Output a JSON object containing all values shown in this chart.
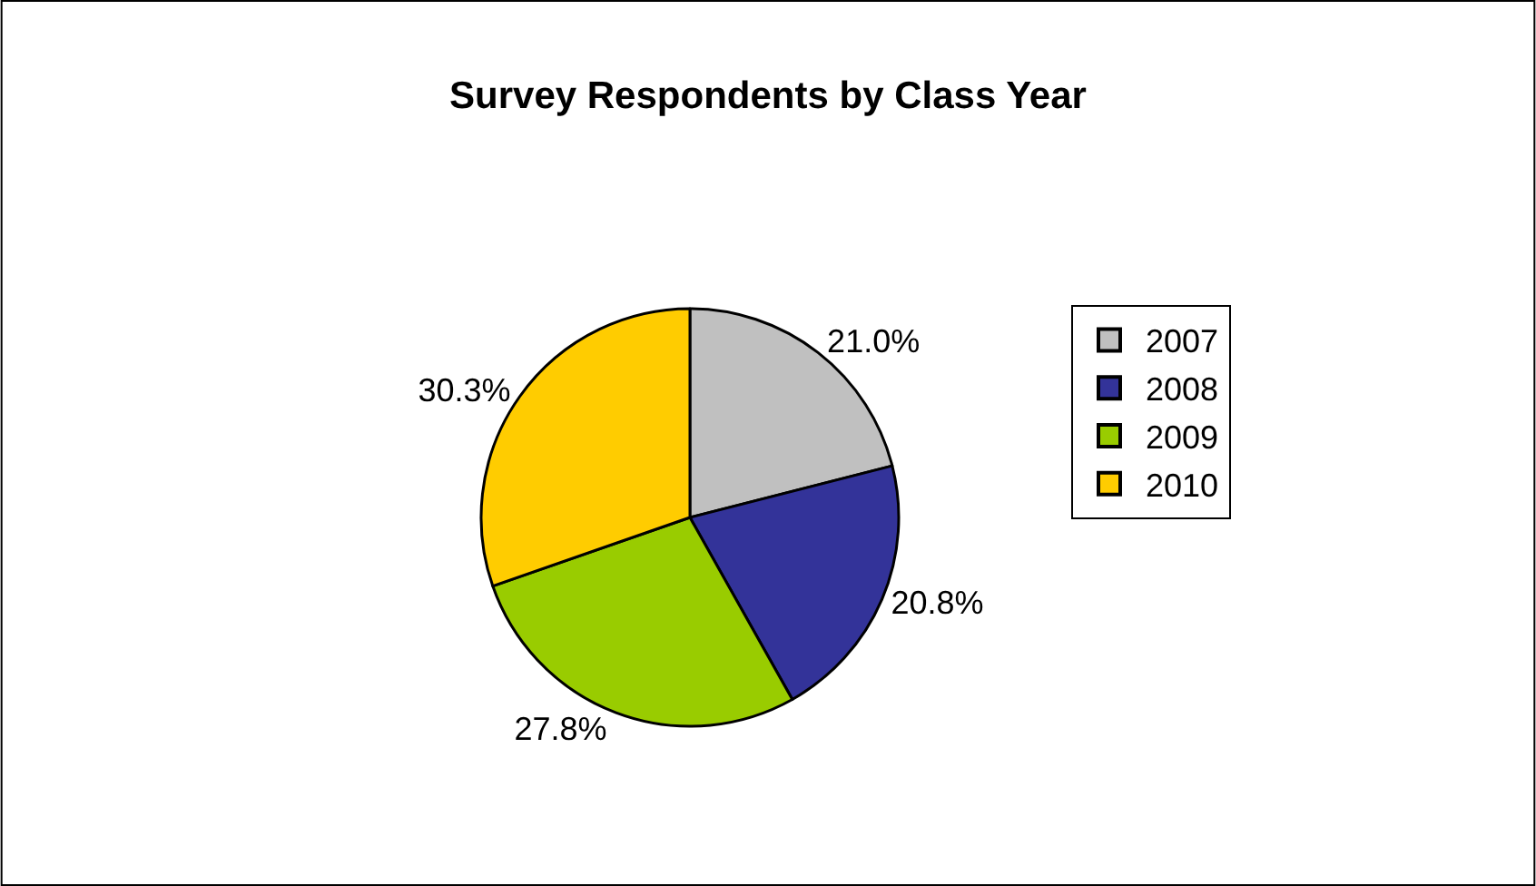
{
  "chart_data": {
    "type": "pie",
    "title": "Survey Respondents by Class Year",
    "categories": [
      "2007",
      "2008",
      "2009",
      "2010"
    ],
    "values": [
      21.0,
      20.8,
      27.8,
      30.3
    ],
    "value_labels": [
      "21.0%",
      "20.8%",
      "27.8%",
      "30.3%"
    ],
    "colors": [
      "#c0c0c0",
      "#333399",
      "#99cc00",
      "#ffcc00"
    ],
    "legend": "right"
  }
}
